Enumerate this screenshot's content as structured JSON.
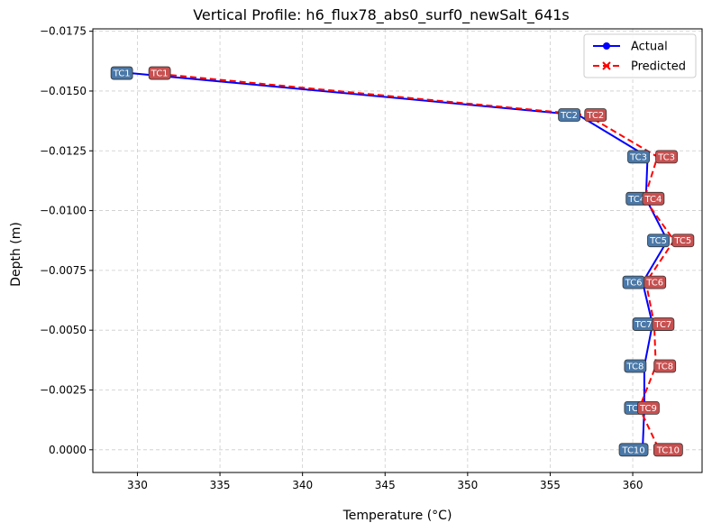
{
  "chart_data": {
    "type": "line",
    "title": "Vertical Profile: h6_flux78_abs0_surf0_newSalt_641s",
    "xlabel": "Temperature (°C)",
    "ylabel": "Depth (m)",
    "xlim": [
      327.3,
      364.2
    ],
    "ylim": [
      0.00095,
      -0.0176
    ],
    "y_inverted": true,
    "x_ticks": [
      330,
      335,
      340,
      345,
      350,
      355,
      360
    ],
    "y_ticks": [
      -0.0175,
      -0.015,
      -0.0125,
      -0.01,
      -0.0075,
      -0.005,
      -0.0025,
      0.0
    ],
    "y_tick_labels": [
      "−0.0175",
      "−0.0150",
      "−0.0125",
      "−0.0100",
      "−0.0075",
      "−0.0050",
      "−0.0025",
      "0.0000"
    ],
    "grid": true,
    "legend_position": "top-right",
    "series": [
      {
        "name": "Actual",
        "color": "#0000ff",
        "marker": "circle",
        "linestyle": "solid",
        "label_color": "#4a78a8",
        "points": [
          {
            "label": "TC1",
            "x": 329.6,
            "y": -0.01575
          },
          {
            "label": "TC2",
            "x": 356.7,
            "y": -0.014
          },
          {
            "label": "TC3",
            "x": 360.9,
            "y": -0.01225
          },
          {
            "label": "TC4",
            "x": 360.8,
            "y": -0.0105
          },
          {
            "label": "TC5",
            "x": 362.1,
            "y": -0.00875
          },
          {
            "label": "TC6",
            "x": 360.6,
            "y": -0.007
          },
          {
            "label": "TC7",
            "x": 361.2,
            "y": -0.00525
          },
          {
            "label": "TC8",
            "x": 360.7,
            "y": -0.0035
          },
          {
            "label": "TC9",
            "x": 360.7,
            "y": -0.00175
          },
          {
            "label": "TC10",
            "x": 360.6,
            "y": 0.0
          }
        ]
      },
      {
        "name": "Predicted",
        "color": "#ff0000",
        "marker": "x",
        "linestyle": "dashed",
        "label_color": "#c85050",
        "points": [
          {
            "label": "TC1",
            "x": 330.8,
            "y": -0.01575
          },
          {
            "label": "TC2",
            "x": 357.2,
            "y": -0.014
          },
          {
            "label": "TC3",
            "x": 361.5,
            "y": -0.01225
          },
          {
            "label": "TC4",
            "x": 360.7,
            "y": -0.0105
          },
          {
            "label": "TC5",
            "x": 362.5,
            "y": -0.00875
          },
          {
            "label": "TC6",
            "x": 360.8,
            "y": -0.007
          },
          {
            "label": "TC7",
            "x": 361.3,
            "y": -0.00525
          },
          {
            "label": "TC8",
            "x": 361.4,
            "y": -0.0035
          },
          {
            "label": "TC9",
            "x": 360.4,
            "y": -0.00175
          },
          {
            "label": "TC10",
            "x": 361.6,
            "y": 0.0
          }
        ]
      }
    ]
  }
}
